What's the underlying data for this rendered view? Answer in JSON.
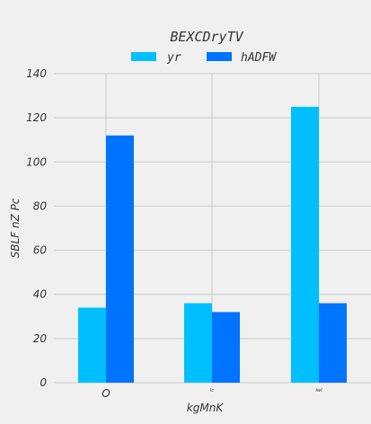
{
  "chart_data": {
    "type": "bar",
    "title": "BEXCDryTV",
    "xlabel": "kgMnK",
    "ylabel": "SBLF nZ Pc",
    "categories": [
      "O",
      "Ic",
      "Iwl"
    ],
    "series": [
      {
        "name": "yr",
        "color": "#00bfff",
        "values": [
          34,
          36,
          125
        ]
      },
      {
        "name": "hADFW",
        "color": "#0073ff",
        "values": [
          112,
          32,
          36
        ]
      }
    ],
    "ylim": [
      0,
      140
    ],
    "yticks": [
      0,
      20,
      40,
      60,
      80,
      100,
      120,
      140
    ],
    "grid": true,
    "legend_position": "top-center"
  }
}
